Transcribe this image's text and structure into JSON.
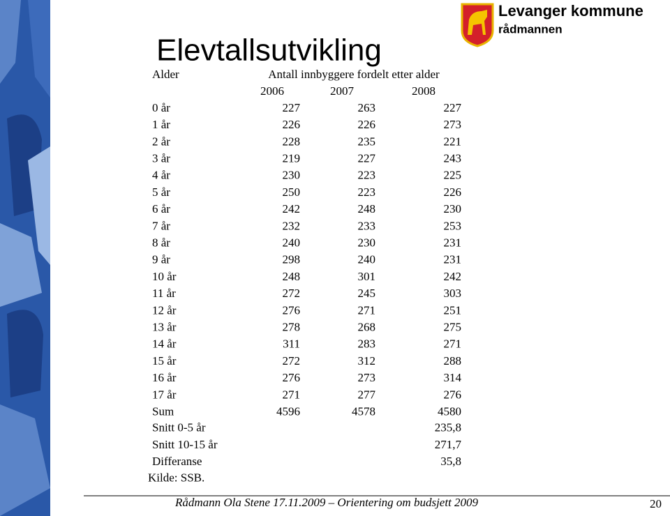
{
  "header": {
    "organization": "Levanger kommune",
    "unit": "rådmannen"
  },
  "title": "Elevtallsutvikling",
  "table": {
    "label_header": "Alder",
    "group_header": "Antall innbyggere fordelt etter alder",
    "years": [
      "2006",
      "2007",
      "2008"
    ],
    "rows": [
      [
        "0 år",
        "227",
        "263",
        "227"
      ],
      [
        "1 år",
        "226",
        "226",
        "273"
      ],
      [
        "2 år",
        "228",
        "235",
        "221"
      ],
      [
        "3 år",
        "219",
        "227",
        "243"
      ],
      [
        "4 år",
        "230",
        "223",
        "225"
      ],
      [
        "5 år",
        "250",
        "223",
        "226"
      ],
      [
        "6 år",
        "242",
        "248",
        "230"
      ],
      [
        "7 år",
        "232",
        "233",
        "253"
      ],
      [
        "8 år",
        "240",
        "230",
        "231"
      ],
      [
        "9 år",
        "298",
        "240",
        "231"
      ],
      [
        "10 år",
        "248",
        "301",
        "242"
      ],
      [
        "11 år",
        "272",
        "245",
        "303"
      ],
      [
        "12 år",
        "276",
        "271",
        "251"
      ],
      [
        "13 år",
        "278",
        "268",
        "275"
      ],
      [
        "14 år",
        "311",
        "283",
        "271"
      ],
      [
        "15 år",
        "272",
        "312",
        "288"
      ],
      [
        "16 år",
        "276",
        "273",
        "314"
      ],
      [
        "17 år",
        "271",
        "277",
        "276"
      ],
      [
        "Sum",
        "4596",
        "4578",
        "4580"
      ]
    ],
    "summary": [
      {
        "label": "Snitt 0-5 år",
        "value": "235,8"
      },
      {
        "label": "Snitt 10-15 år",
        "value": "271,7"
      },
      {
        "label": "Differanse",
        "value": "35,8"
      }
    ],
    "source": "Kilde: SSB."
  },
  "footer": "Rådmann Ola Stene 17.11.2009 – Orientering om budsjett 2009",
  "page_number": "20"
}
